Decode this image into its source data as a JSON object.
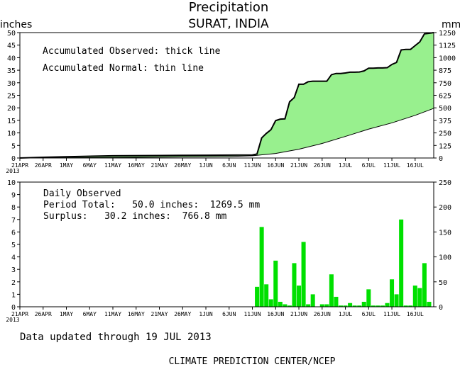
{
  "header": {
    "title": "Precipitation",
    "subtitle": "SURAT, INDIA",
    "left_unit": "inches",
    "right_unit": "mm"
  },
  "footer": {
    "updated": "Data updated through 19 JUL 2013",
    "credit": "CLIMATE PREDICTION CENTER/NCEP"
  },
  "colors": {
    "fill": "#98f08e",
    "bar": "#00e000",
    "axis": "#000000"
  },
  "chart_data": [
    {
      "type": "area",
      "title": "Precipitation",
      "subtitle": "SURAT, INDIA",
      "legend": [
        "Accumulated Observed: thick line",
        "Accumulated Normal: thin line"
      ],
      "ylabel": "inches",
      "y2label": "mm",
      "ylim": [
        0,
        50
      ],
      "y_ticks": [
        "0",
        "5",
        "10",
        "15",
        "20",
        "25",
        "30",
        "35",
        "40",
        "45",
        "50"
      ],
      "y2_ticks": [
        "0",
        "125",
        "250",
        "375",
        "500",
        "625",
        "750",
        "875",
        "1000",
        "1125",
        "1250"
      ],
      "x_tick_labels": [
        "21APR",
        "26APR",
        "1MAY",
        "6MAY",
        "11MAY",
        "16MAY",
        "21MAY",
        "26MAY",
        "1JUN",
        "6JUN",
        "11JUN",
        "16JUN",
        "21JUN",
        "26JUN",
        "1JUL",
        "6JUL",
        "11JUL",
        "16JUL"
      ],
      "x_first_label_year": "2013",
      "x_day_range": [
        0,
        89
      ],
      "series": [
        {
          "name": "Accumulated Observed",
          "x": [
            0,
            5,
            10,
            20,
            30,
            40,
            50,
            51,
            52,
            53,
            54,
            55,
            56,
            57,
            58,
            59,
            60,
            61,
            62,
            63,
            64,
            65,
            66,
            67,
            68,
            69,
            70,
            71,
            72,
            73,
            74,
            75,
            76,
            77,
            78,
            79,
            80,
            81,
            82,
            83,
            84,
            85,
            86,
            87,
            88,
            89
          ],
          "y": [
            0,
            0.3,
            0.5,
            0.9,
            1.0,
            1.1,
            1.2,
            1.6,
            8.0,
            9.8,
            11.3,
            14.9,
            15.5,
            15.6,
            22.4,
            24.1,
            29.4,
            29.4,
            30.4,
            30.6,
            30.6,
            30.6,
            30.6,
            33.2,
            33.7,
            33.7,
            33.9,
            34.2,
            34.2,
            34.3,
            34.7,
            35.8,
            35.8,
            35.9,
            35.9,
            36.0,
            37.3,
            38.1,
            43.1,
            43.3,
            43.3,
            44.8,
            46.3,
            49.5,
            49.7,
            50.0
          ]
        },
        {
          "name": "Accumulated Normal",
          "x": [
            0,
            10,
            20,
            30,
            40,
            45,
            50,
            55,
            60,
            65,
            70,
            75,
            80,
            85,
            89
          ],
          "y": [
            0,
            0.1,
            0.2,
            0.35,
            0.5,
            0.6,
            0.9,
            1.8,
            3.5,
            5.8,
            8.6,
            11.5,
            14.0,
            17.0,
            19.8
          ]
        }
      ]
    },
    {
      "type": "bar",
      "title": "Daily Observed",
      "annotations": [
        "Daily Observed",
        "Period Total:   50.0 inches:  1269.5 mm",
        "Surplus:   30.2 inches:  766.8 mm"
      ],
      "ylim": [
        0,
        10
      ],
      "y_ticks": [
        "0",
        "1",
        "2",
        "3",
        "4",
        "5",
        "6",
        "7",
        "8",
        "9",
        "10"
      ],
      "y2_ticks": [
        "0",
        "50",
        "100",
        "150",
        "200",
        "250"
      ],
      "x_tick_labels": [
        "21APR",
        "26APR",
        "1MAY",
        "6MAY",
        "11MAY",
        "16MAY",
        "21MAY",
        "26MAY",
        "1JUN",
        "6JUN",
        "11JUN",
        "16JUN",
        "21JUN",
        "26JUN",
        "1JUL",
        "6JUL",
        "11JUL",
        "16JUL"
      ],
      "x_first_label_year": "2013",
      "x": [
        51,
        52,
        53,
        54,
        55,
        56,
        57,
        58,
        59,
        60,
        61,
        62,
        63,
        65,
        66,
        67,
        68,
        69,
        70,
        71,
        72,
        73,
        74,
        75,
        76,
        77,
        78,
        79,
        80,
        81,
        82,
        83,
        84,
        85,
        86,
        87,
        88,
        89
      ],
      "values": [
        1.6,
        6.4,
        1.8,
        0.6,
        3.7,
        0.4,
        0.2,
        0.1,
        3.5,
        1.7,
        5.2,
        0.2,
        1.0,
        0.2,
        0.2,
        2.6,
        0.8,
        0.1,
        0.1,
        0.3,
        0.1,
        0.1,
        0.4,
        1.4,
        0.1,
        0.1,
        0.1,
        0.3,
        2.2,
        1.0,
        7.0,
        0.1,
        0.1,
        1.7,
        1.5,
        3.5,
        0.4,
        0.0
      ]
    }
  ]
}
